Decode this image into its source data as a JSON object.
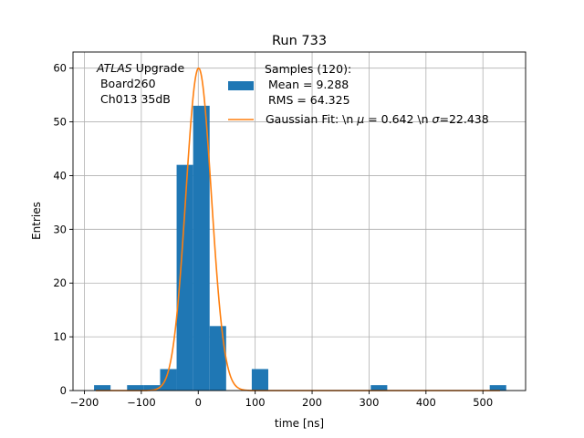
{
  "chart_data": {
    "type": "bar",
    "title": "Run 733",
    "xlabel": "time [ns]",
    "ylabel": "Entries",
    "xlim": [
      -220,
      575
    ],
    "ylim": [
      0,
      63
    ],
    "xticks": [
      -200,
      -100,
      0,
      100,
      200,
      300,
      400,
      500
    ],
    "yticks": [
      0,
      10,
      20,
      30,
      40,
      50,
      60
    ],
    "grid": true,
    "annotation": {
      "atlas": "ATLAS",
      "line1_rest": " Upgrade",
      "line2": " Board260",
      "line3": " Ch013 35dB"
    },
    "legend": {
      "position": "top-right",
      "samples_l1": "Samples (120):",
      "samples_l2": " Mean = 9.288",
      "samples_l3": " RMS = 64.325",
      "fit_pre": "Gaussian Fit: \\n ",
      "fit_mu": "μ",
      "fit_mid": " = 0.642 \\n ",
      "fit_sigma": "σ",
      "fit_post": "=22.438"
    },
    "histogram": {
      "bin_width": 29,
      "bins": [
        {
          "x0": -183,
          "value": 1
        },
        {
          "x0": -125,
          "value": 1
        },
        {
          "x0": -96,
          "value": 1
        },
        {
          "x0": -67,
          "value": 4
        },
        {
          "x0": -38,
          "value": 42
        },
        {
          "x0": -9,
          "value": 53
        },
        {
          "x0": 20,
          "value": 12
        },
        {
          "x0": 94,
          "value": 4
        },
        {
          "x0": 303,
          "value": 1
        },
        {
          "x0": 512,
          "value": 1
        }
      ]
    },
    "fit": {
      "amplitude": 60,
      "mu": 0.642,
      "sigma": 22.438
    },
    "colors": {
      "bars": "#1f77b4",
      "fit": "#ff7f0e",
      "grid": "#b0b0b0"
    }
  }
}
